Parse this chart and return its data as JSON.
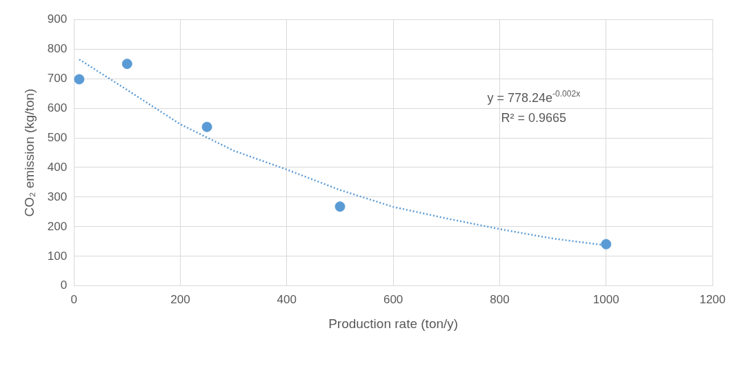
{
  "chart_data": {
    "type": "scatter",
    "xlabel": "Production rate (ton/y)",
    "ylabel": "CO₂ emission (kg/ton)",
    "xlim": [
      0,
      1200
    ],
    "xticks": [
      0,
      200,
      400,
      600,
      800,
      1000,
      1200
    ],
    "ylim": [
      0,
      900
    ],
    "yticks": [
      0,
      100,
      200,
      300,
      400,
      500,
      600,
      700,
      800,
      900
    ],
    "grid": true,
    "legend": false,
    "marker": "circle",
    "series": [
      {
        "type": "scatter",
        "color": "#5b9bd5",
        "x": [
          10,
          100,
          250,
          500,
          1000
        ],
        "values": [
          698,
          750,
          537,
          268,
          141
        ]
      },
      {
        "type": "line",
        "color": "#5b9bd5",
        "line_style": "dotted",
        "marker": "none",
        "x": [
          10,
          100,
          200,
          300,
          400,
          500,
          600,
          700,
          800,
          900,
          1000
        ],
        "values": [
          765,
          662,
          546,
          457,
          393,
          324,
          267,
          228,
          192,
          160,
          137
        ]
      }
    ],
    "annotations": [
      "y = 778.24e$^{-0.002x}$",
      "R² = 0.9665"
    ]
  }
}
